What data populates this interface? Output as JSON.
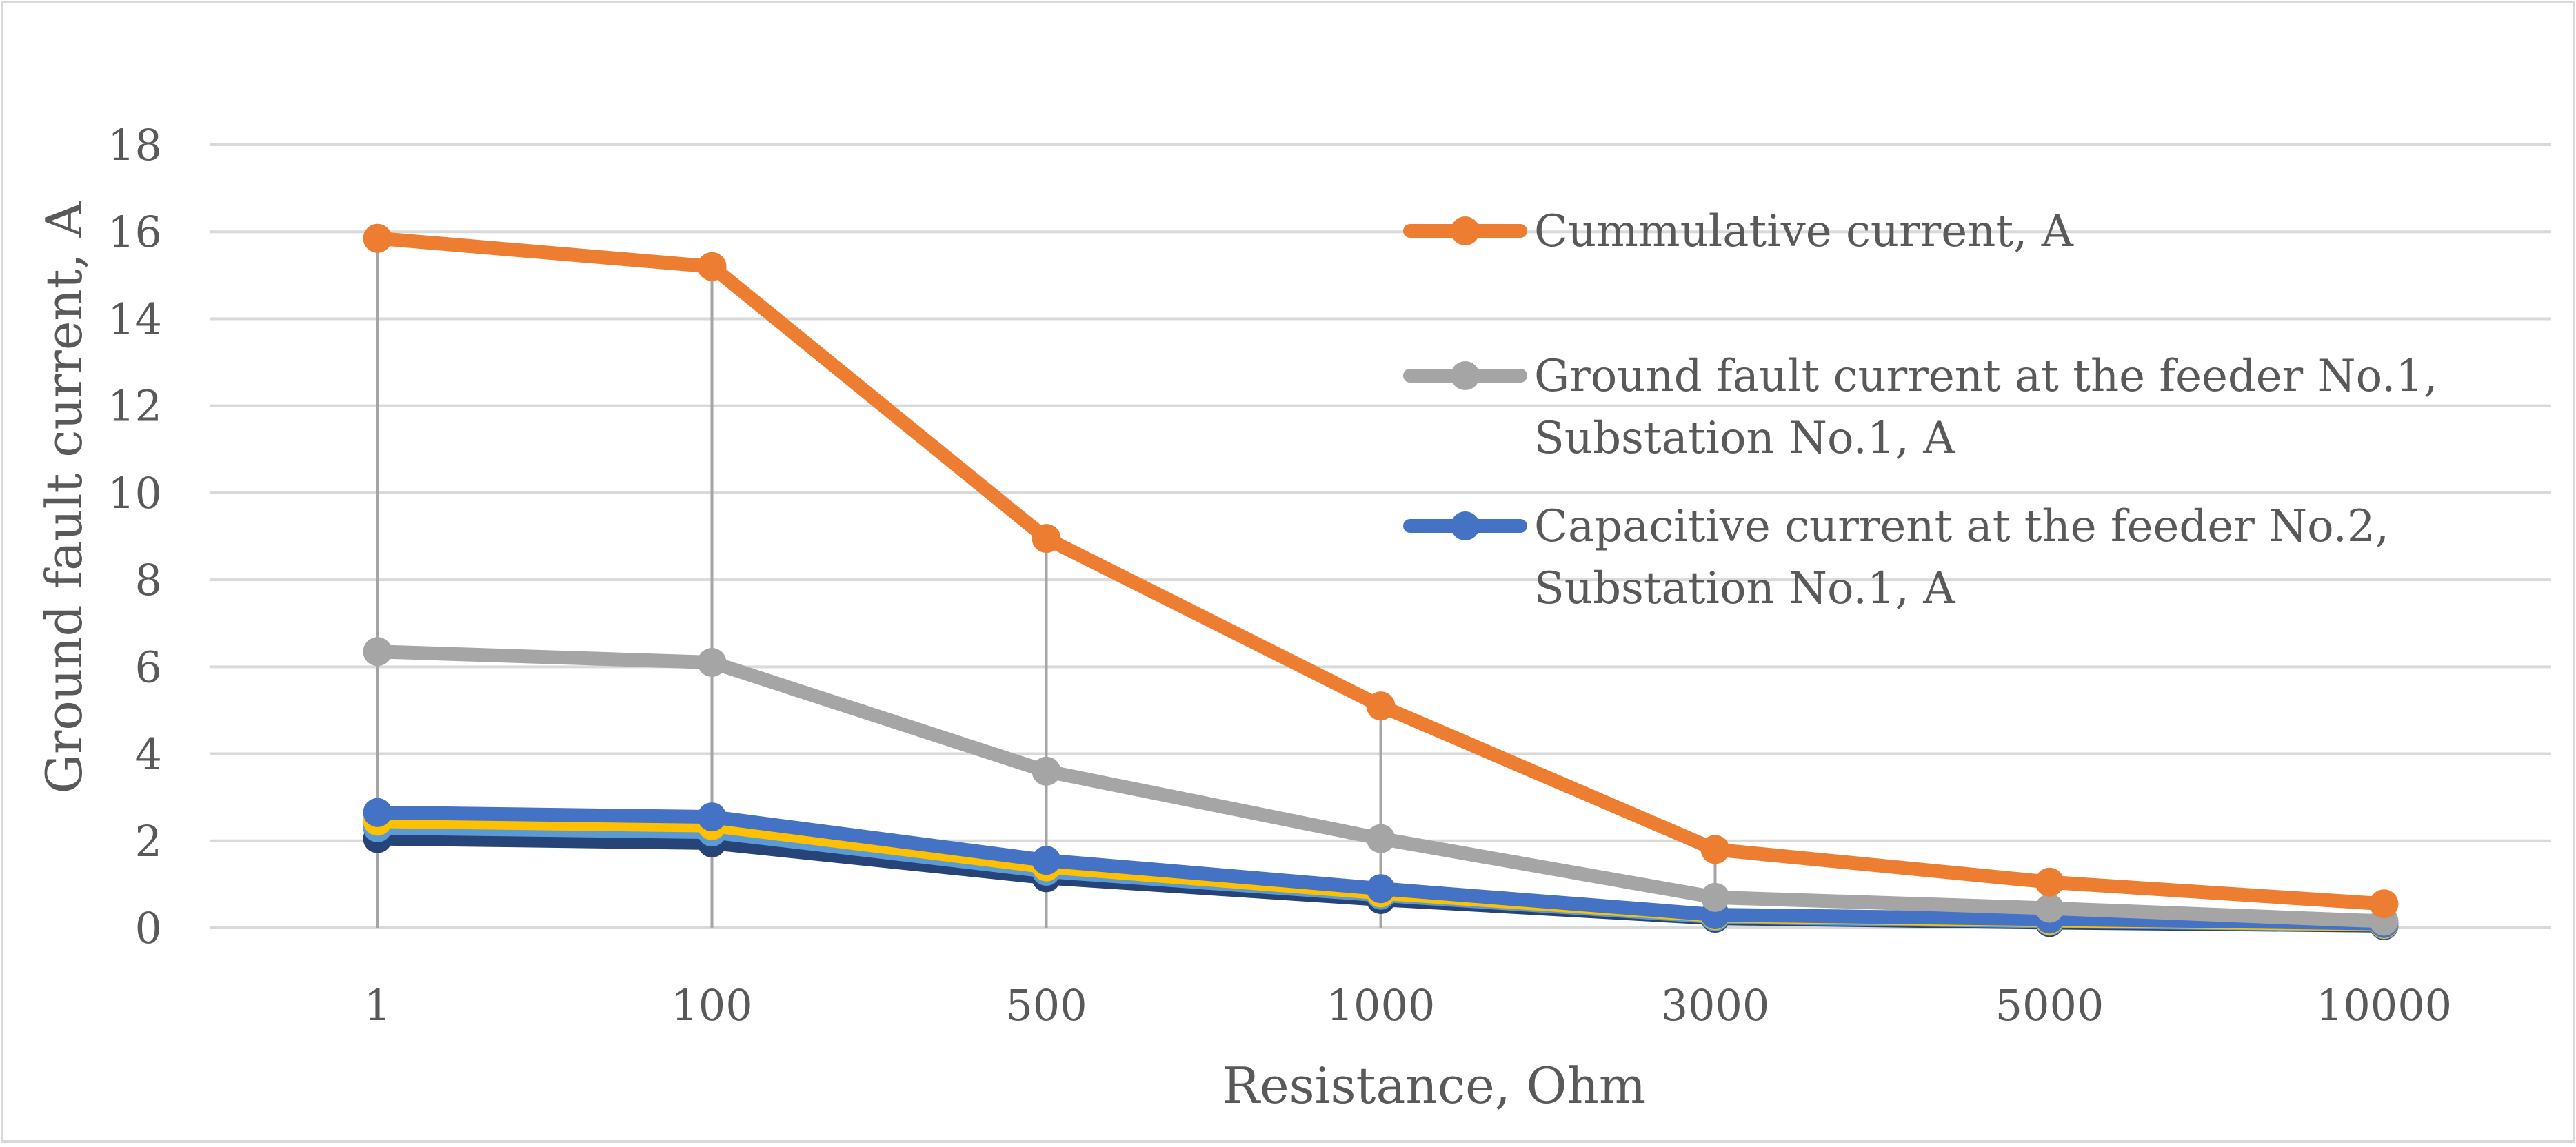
{
  "chart_data": {
    "type": "line",
    "title": "",
    "xlabel": "Resistance, Ohm",
    "ylabel": "Ground fault current, A",
    "categories": [
      "1",
      "100",
      "500",
      "1000",
      "3000",
      "5000",
      "10000"
    ],
    "ylim": [
      0,
      18
    ],
    "yticks": [
      0,
      2,
      4,
      6,
      8,
      10,
      12,
      14,
      16,
      18
    ],
    "grid": true,
    "legend_position": "top-right",
    "series": [
      {
        "name": "Cummulative current, A",
        "color": "#ED7D31",
        "values": [
          15.85,
          15.2,
          8.95,
          5.1,
          1.8,
          1.05,
          0.55
        ]
      },
      {
        "name": "Ground fault current at the feeder No.1, Substation No.1, A",
        "color": "#A5A5A5",
        "values": [
          6.35,
          6.1,
          3.6,
          2.05,
          0.7,
          0.45,
          0.15
        ]
      },
      {
        "name": "Capacitive current at the feeder No.2, Substation No.1, A",
        "color": "#4472C4",
        "values": [
          2.65,
          2.55,
          1.55,
          0.9,
          0.3,
          0.2,
          0.1
        ]
      },
      {
        "name": "",
        "color": "#FFC000",
        "values": [
          2.45,
          2.35,
          1.4,
          0.8,
          0.28,
          0.17,
          0.08
        ]
      },
      {
        "name": "",
        "color": "#5B9BD5",
        "values": [
          2.3,
          2.2,
          1.3,
          0.75,
          0.25,
          0.15,
          0.07
        ]
      },
      {
        "name": "",
        "color": "#264478",
        "values": [
          2.05,
          1.95,
          1.15,
          0.65,
          0.22,
          0.12,
          0.05
        ]
      }
    ]
  }
}
